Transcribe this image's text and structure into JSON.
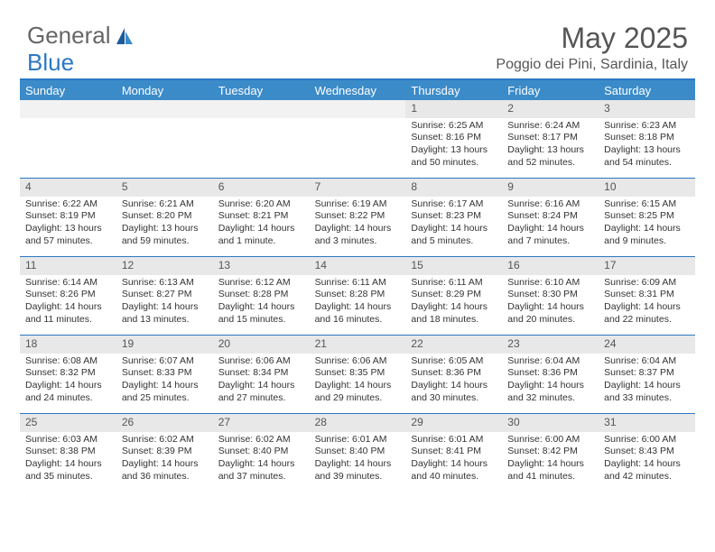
{
  "logo": {
    "text1": "General",
    "text2": "Blue"
  },
  "title": "May 2025",
  "location": "Poggio dei Pini, Sardinia, Italy",
  "colors": {
    "header_bg": "#3b8bc9",
    "accent_border": "#2b78c4",
    "daynum_bg": "#e8e8e8",
    "text": "#333333",
    "title_text": "#555555"
  },
  "day_names": [
    "Sunday",
    "Monday",
    "Tuesday",
    "Wednesday",
    "Thursday",
    "Friday",
    "Saturday"
  ],
  "weeks": [
    [
      null,
      null,
      null,
      null,
      {
        "n": "1",
        "sr": "6:25 AM",
        "ss": "8:16 PM",
        "dl": "13 hours and 50 minutes."
      },
      {
        "n": "2",
        "sr": "6:24 AM",
        "ss": "8:17 PM",
        "dl": "13 hours and 52 minutes."
      },
      {
        "n": "3",
        "sr": "6:23 AM",
        "ss": "8:18 PM",
        "dl": "13 hours and 54 minutes."
      }
    ],
    [
      {
        "n": "4",
        "sr": "6:22 AM",
        "ss": "8:19 PM",
        "dl": "13 hours and 57 minutes."
      },
      {
        "n": "5",
        "sr": "6:21 AM",
        "ss": "8:20 PM",
        "dl": "13 hours and 59 minutes."
      },
      {
        "n": "6",
        "sr": "6:20 AM",
        "ss": "8:21 PM",
        "dl": "14 hours and 1 minute."
      },
      {
        "n": "7",
        "sr": "6:19 AM",
        "ss": "8:22 PM",
        "dl": "14 hours and 3 minutes."
      },
      {
        "n": "8",
        "sr": "6:17 AM",
        "ss": "8:23 PM",
        "dl": "14 hours and 5 minutes."
      },
      {
        "n": "9",
        "sr": "6:16 AM",
        "ss": "8:24 PM",
        "dl": "14 hours and 7 minutes."
      },
      {
        "n": "10",
        "sr": "6:15 AM",
        "ss": "8:25 PM",
        "dl": "14 hours and 9 minutes."
      }
    ],
    [
      {
        "n": "11",
        "sr": "6:14 AM",
        "ss": "8:26 PM",
        "dl": "14 hours and 11 minutes."
      },
      {
        "n": "12",
        "sr": "6:13 AM",
        "ss": "8:27 PM",
        "dl": "14 hours and 13 minutes."
      },
      {
        "n": "13",
        "sr": "6:12 AM",
        "ss": "8:28 PM",
        "dl": "14 hours and 15 minutes."
      },
      {
        "n": "14",
        "sr": "6:11 AM",
        "ss": "8:28 PM",
        "dl": "14 hours and 16 minutes."
      },
      {
        "n": "15",
        "sr": "6:11 AM",
        "ss": "8:29 PM",
        "dl": "14 hours and 18 minutes."
      },
      {
        "n": "16",
        "sr": "6:10 AM",
        "ss": "8:30 PM",
        "dl": "14 hours and 20 minutes."
      },
      {
        "n": "17",
        "sr": "6:09 AM",
        "ss": "8:31 PM",
        "dl": "14 hours and 22 minutes."
      }
    ],
    [
      {
        "n": "18",
        "sr": "6:08 AM",
        "ss": "8:32 PM",
        "dl": "14 hours and 24 minutes."
      },
      {
        "n": "19",
        "sr": "6:07 AM",
        "ss": "8:33 PM",
        "dl": "14 hours and 25 minutes."
      },
      {
        "n": "20",
        "sr": "6:06 AM",
        "ss": "8:34 PM",
        "dl": "14 hours and 27 minutes."
      },
      {
        "n": "21",
        "sr": "6:06 AM",
        "ss": "8:35 PM",
        "dl": "14 hours and 29 minutes."
      },
      {
        "n": "22",
        "sr": "6:05 AM",
        "ss": "8:36 PM",
        "dl": "14 hours and 30 minutes."
      },
      {
        "n": "23",
        "sr": "6:04 AM",
        "ss": "8:36 PM",
        "dl": "14 hours and 32 minutes."
      },
      {
        "n": "24",
        "sr": "6:04 AM",
        "ss": "8:37 PM",
        "dl": "14 hours and 33 minutes."
      }
    ],
    [
      {
        "n": "25",
        "sr": "6:03 AM",
        "ss": "8:38 PM",
        "dl": "14 hours and 35 minutes."
      },
      {
        "n": "26",
        "sr": "6:02 AM",
        "ss": "8:39 PM",
        "dl": "14 hours and 36 minutes."
      },
      {
        "n": "27",
        "sr": "6:02 AM",
        "ss": "8:40 PM",
        "dl": "14 hours and 37 minutes."
      },
      {
        "n": "28",
        "sr": "6:01 AM",
        "ss": "8:40 PM",
        "dl": "14 hours and 39 minutes."
      },
      {
        "n": "29",
        "sr": "6:01 AM",
        "ss": "8:41 PM",
        "dl": "14 hours and 40 minutes."
      },
      {
        "n": "30",
        "sr": "6:00 AM",
        "ss": "8:42 PM",
        "dl": "14 hours and 41 minutes."
      },
      {
        "n": "31",
        "sr": "6:00 AM",
        "ss": "8:43 PM",
        "dl": "14 hours and 42 minutes."
      }
    ]
  ],
  "labels": {
    "sunrise": "Sunrise: ",
    "sunset": "Sunset: ",
    "daylight": "Daylight: "
  }
}
